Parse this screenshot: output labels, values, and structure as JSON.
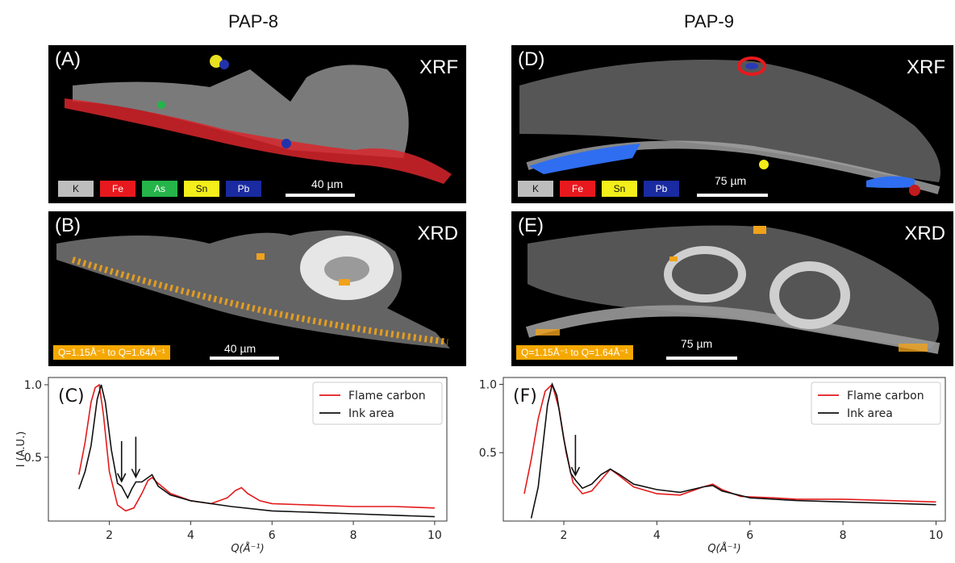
{
  "columns": [
    {
      "title": "PAP-8",
      "xrf": {
        "label": "(A)",
        "tag": "XRF",
        "scale": "40 µm",
        "chips": [
          {
            "name": "K",
            "color": "#bdbdbd",
            "text_color": "#111111"
          },
          {
            "name": "Fe",
            "color": "#e8191e",
            "text_color": "#ffffff"
          },
          {
            "name": "As",
            "color": "#25b44a",
            "text_color": "#ffffff"
          },
          {
            "name": "Sn",
            "color": "#f4ee1b",
            "text_color": "#111111"
          },
          {
            "name": "Pb",
            "color": "#1a2aa0",
            "text_color": "#ffffff"
          }
        ]
      },
      "xrd": {
        "label": "(B)",
        "tag": "XRD",
        "scale": "40 µm",
        "qrange": "Q=1.15Å⁻¹ to Q=1.64Å⁻¹"
      }
    },
    {
      "title": "PAP-9",
      "xrf": {
        "label": "(D)",
        "tag": "XRF",
        "scale": "75 µm",
        "chips": [
          {
            "name": "K",
            "color": "#bdbdbd",
            "text_color": "#111111"
          },
          {
            "name": "Fe",
            "color": "#e8191e",
            "text_color": "#ffffff"
          },
          {
            "name": "Sn",
            "color": "#f4ee1b",
            "text_color": "#111111"
          },
          {
            "name": "Pb",
            "color": "#1a2aa0",
            "text_color": "#ffffff"
          }
        ]
      },
      "xrd": {
        "label": "(E)",
        "tag": "XRD",
        "scale": "75 µm",
        "qrange": "Q=1.15Å⁻¹ to Q=1.64Å⁻¹"
      }
    }
  ],
  "chart_data": [
    {
      "type": "line",
      "panel_label": "(C)",
      "xlabel": "Q(Å⁻¹)",
      "ylabel": "I (A.U.)",
      "xlim": [
        0.5,
        10.3
      ],
      "ylim": [
        0.06,
        1.05
      ],
      "xticks": [
        2,
        4,
        6,
        8,
        10
      ],
      "yticks": [
        0.5,
        1.0
      ],
      "legend": "top-right",
      "arrows_at_x": [
        2.3,
        2.65
      ],
      "series": [
        {
          "name": "Flame carbon",
          "color": "#e31a1c",
          "x": [
            1.25,
            1.4,
            1.55,
            1.65,
            1.75,
            1.85,
            2.0,
            2.2,
            2.4,
            2.6,
            2.8,
            2.95,
            3.05,
            3.2,
            3.5,
            4.0,
            4.5,
            4.9,
            5.1,
            5.25,
            5.4,
            5.7,
            6.0,
            7.0,
            8.0,
            9.0,
            10.0
          ],
          "y": [
            0.38,
            0.6,
            0.88,
            0.98,
            1.0,
            0.8,
            0.4,
            0.17,
            0.13,
            0.15,
            0.25,
            0.34,
            0.36,
            0.32,
            0.25,
            0.2,
            0.18,
            0.22,
            0.27,
            0.29,
            0.25,
            0.2,
            0.18,
            0.17,
            0.16,
            0.16,
            0.15
          ]
        },
        {
          "name": "Ink area",
          "color": "#111111",
          "x": [
            1.25,
            1.4,
            1.55,
            1.7,
            1.8,
            1.9,
            2.05,
            2.2,
            2.3,
            2.45,
            2.55,
            2.65,
            2.8,
            2.95,
            3.05,
            3.2,
            3.5,
            4.0,
            5.0,
            6.0,
            7.0,
            8.0,
            9.0,
            10.0
          ],
          "y": [
            0.28,
            0.4,
            0.58,
            0.9,
            1.0,
            0.88,
            0.55,
            0.32,
            0.3,
            0.22,
            0.28,
            0.33,
            0.33,
            0.36,
            0.38,
            0.3,
            0.24,
            0.2,
            0.16,
            0.13,
            0.12,
            0.11,
            0.1,
            0.09
          ]
        }
      ]
    },
    {
      "type": "line",
      "panel_label": "(F)",
      "xlabel": "Q(Å⁻¹)",
      "ylabel": "",
      "xlim": [
        0.7,
        10.2
      ],
      "ylim": [
        0.0,
        1.05
      ],
      "xticks": [
        2,
        4,
        6,
        8,
        10
      ],
      "yticks": [
        0.5,
        1.0
      ],
      "legend": "top-right",
      "arrows_at_x": [
        2.25
      ],
      "series": [
        {
          "name": "Flame carbon",
          "color": "#e31a1c",
          "x": [
            1.15,
            1.3,
            1.45,
            1.6,
            1.75,
            1.9,
            2.05,
            2.2,
            2.4,
            2.6,
            2.8,
            3.0,
            3.2,
            3.5,
            4.0,
            4.5,
            5.0,
            5.2,
            5.4,
            5.8,
            6.5,
            7.0,
            8.0,
            9.0,
            10.0
          ],
          "y": [
            0.2,
            0.45,
            0.75,
            0.95,
            1.0,
            0.82,
            0.5,
            0.28,
            0.2,
            0.22,
            0.3,
            0.38,
            0.33,
            0.25,
            0.2,
            0.19,
            0.25,
            0.27,
            0.23,
            0.18,
            0.17,
            0.16,
            0.16,
            0.15,
            0.14
          ]
        },
        {
          "name": "Ink area",
          "color": "#111111",
          "x": [
            1.3,
            1.45,
            1.55,
            1.65,
            1.75,
            1.85,
            2.0,
            2.15,
            2.25,
            2.4,
            2.6,
            2.8,
            3.0,
            3.2,
            3.5,
            4.0,
            4.5,
            5.0,
            5.2,
            5.4,
            6.0,
            7.0,
            8.0,
            9.0,
            10.0
          ],
          "y": [
            0.02,
            0.25,
            0.55,
            0.85,
            1.0,
            0.92,
            0.6,
            0.35,
            0.3,
            0.24,
            0.27,
            0.34,
            0.38,
            0.34,
            0.27,
            0.23,
            0.21,
            0.25,
            0.26,
            0.22,
            0.17,
            0.15,
            0.14,
            0.13,
            0.12
          ]
        }
      ]
    }
  ]
}
